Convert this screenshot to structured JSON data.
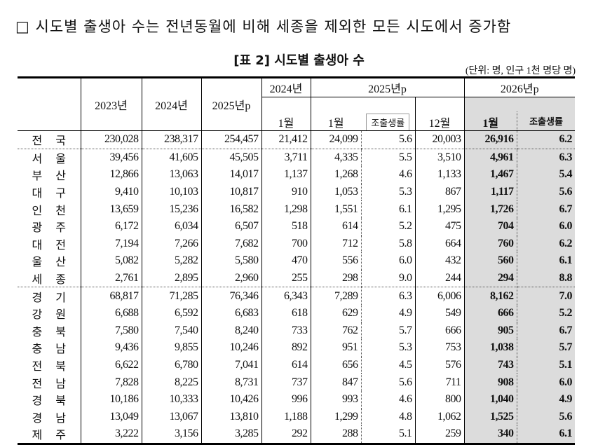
{
  "headline": "□ 시도별 출생아 수는 전년동월에 비해 세종을 제외한 모든 시도에서 증가함",
  "table": {
    "caption": "[표 2] 시도별 출생아 수",
    "unit": "(단위: 명, 인구 1천 명당 명)",
    "header": {
      "y2023": "2023년",
      "y2024": "2024년",
      "y2025p": "2025년p",
      "g2024": "2024년",
      "g2025": "2025년p",
      "g2026": "2026년p",
      "m2024_jan": "1월",
      "m2025_jan": "1월",
      "m2025_rate": "조출생률",
      "m2025_dec": "12월",
      "m2026_jan": "1월",
      "m2026_rate": "조출생률"
    },
    "rows": [
      [
        "전 국",
        "230,028",
        "238,317",
        "254,457",
        "21,412",
        "24,099",
        "5.6",
        "20,003",
        "26,916",
        "6.2"
      ],
      [
        "서 울",
        "39,456",
        "41,605",
        "45,505",
        "3,711",
        "4,335",
        "5.5",
        "3,510",
        "4,961",
        "6.3"
      ],
      [
        "부 산",
        "12,866",
        "13,063",
        "14,017",
        "1,137",
        "1,268",
        "4.6",
        "1,133",
        "1,467",
        "5.4"
      ],
      [
        "대 구",
        "9,410",
        "10,103",
        "10,817",
        "910",
        "1,053",
        "5.3",
        "867",
        "1,117",
        "5.6"
      ],
      [
        "인 천",
        "13,659",
        "15,236",
        "16,582",
        "1,298",
        "1,551",
        "6.1",
        "1,295",
        "1,726",
        "6.7"
      ],
      [
        "광 주",
        "6,172",
        "6,034",
        "6,507",
        "518",
        "614",
        "5.2",
        "475",
        "704",
        "6.0"
      ],
      [
        "대 전",
        "7,194",
        "7,266",
        "7,682",
        "700",
        "712",
        "5.8",
        "664",
        "760",
        "6.2"
      ],
      [
        "울 산",
        "5,082",
        "5,282",
        "5,580",
        "470",
        "556",
        "6.0",
        "432",
        "560",
        "6.1"
      ],
      [
        "세 종",
        "2,761",
        "2,895",
        "2,960",
        "255",
        "298",
        "9.0",
        "244",
        "294",
        "8.8"
      ],
      [
        "경 기",
        "68,817",
        "71,285",
        "76,346",
        "6,343",
        "7,289",
        "6.3",
        "6,006",
        "8,162",
        "7.0"
      ],
      [
        "강 원",
        "6,688",
        "6,592",
        "6,683",
        "618",
        "629",
        "4.9",
        "549",
        "666",
        "5.2"
      ],
      [
        "충 북",
        "7,580",
        "7,540",
        "8,240",
        "733",
        "762",
        "5.7",
        "666",
        "905",
        "6.7"
      ],
      [
        "충 남",
        "9,436",
        "9,855",
        "10,246",
        "892",
        "951",
        "5.3",
        "753",
        "1,038",
        "5.7"
      ],
      [
        "전 북",
        "6,622",
        "6,780",
        "7,041",
        "614",
        "656",
        "4.5",
        "576",
        "743",
        "5.1"
      ],
      [
        "전 남",
        "7,828",
        "8,225",
        "8,731",
        "737",
        "847",
        "5.6",
        "711",
        "908",
        "6.0"
      ],
      [
        "경 북",
        "10,186",
        "10,333",
        "10,426",
        "996",
        "993",
        "4.6",
        "800",
        "1,040",
        "4.9"
      ],
      [
        "경 남",
        "13,049",
        "13,067",
        "13,810",
        "1,188",
        "1,299",
        "4.8",
        "1,062",
        "1,525",
        "5.6"
      ],
      [
        "제 주",
        "3,222",
        "3,156",
        "3,285",
        "292",
        "288",
        "5.1",
        "259",
        "340",
        "6.1"
      ]
    ]
  }
}
